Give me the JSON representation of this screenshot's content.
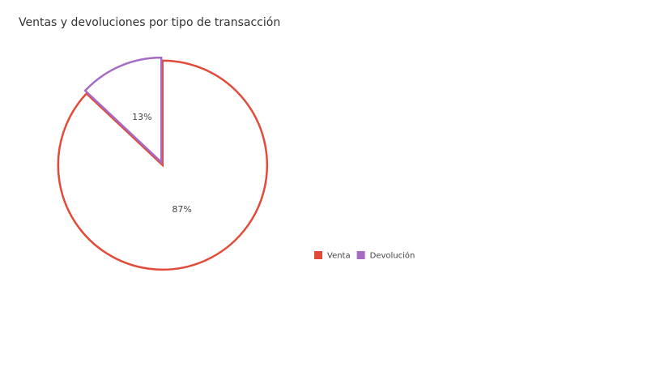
{
  "chart_data": {
    "type": "pie",
    "title": "Ventas y devoluciones por tipo de transacción",
    "categories": [
      "Venta",
      "Devolución"
    ],
    "values": [
      87,
      13
    ],
    "value_labels": [
      "87%",
      "13%"
    ],
    "colors": [
      "#e04b3a",
      "#a66bc4"
    ],
    "legend": "right"
  }
}
